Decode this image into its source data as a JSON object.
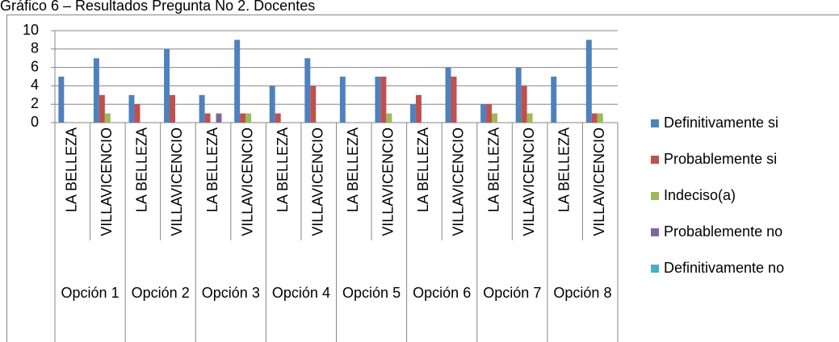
{
  "chart_data": {
    "type": "bar",
    "title": "Gráfico 6 – Resultados Pregunta No 2. Docentes",
    "categories": [
      "LA BELLEZA",
      "VILLAVICENCIO",
      "LA BELLEZA",
      "VILLAVICENCIO",
      "LA BELLEZA",
      "VILLAVICENCIO",
      "LA BELLEZA",
      "VILLAVICENCIO",
      "LA BELLEZA",
      "VILLAVICENCIO",
      "LA BELLEZA",
      "VILLAVICENCIO",
      "LA BELLEZA",
      "VILLAVICENCIO",
      "LA BELLEZA",
      "VILLAVICENCIO"
    ],
    "groups": [
      "Opción 1",
      "Opción 2",
      "Opción 3",
      "Opción 4",
      "Opción 5",
      "Opción 6",
      "Opción 7",
      "Opción 8"
    ],
    "series": [
      {
        "name": "Definitivamente si",
        "color": "#4f81bd",
        "values": [
          5,
          7,
          3,
          8,
          3,
          9,
          4,
          7,
          5,
          5,
          2,
          6,
          2,
          6,
          5,
          9
        ]
      },
      {
        "name": "Probablemente si",
        "color": "#c0504d",
        "values": [
          0,
          3,
          2,
          3,
          1,
          1,
          1,
          4,
          0,
          5,
          3,
          5,
          2,
          4,
          0,
          1
        ]
      },
      {
        "name": "Indeciso(a)",
        "color": "#9bbb59",
        "values": [
          0,
          1,
          0,
          0,
          0,
          1,
          0,
          0,
          0,
          1,
          0,
          0,
          1,
          1,
          0,
          1
        ]
      },
      {
        "name": "Probablemente no",
        "color": "#8064a2",
        "values": [
          0,
          0,
          0,
          0,
          1,
          0,
          0,
          0,
          0,
          0,
          0,
          0,
          0,
          0,
          0,
          0
        ]
      },
      {
        "name": "Definitivamente no",
        "color": "#4bacc6",
        "values": [
          0,
          0,
          0,
          0,
          0,
          0,
          0,
          0,
          0,
          0,
          0,
          0,
          0,
          0,
          0,
          0
        ]
      }
    ],
    "ylim": [
      0,
      10
    ],
    "yticks": [
      0,
      2,
      4,
      6,
      8,
      10
    ],
    "grid": true,
    "legend": "right"
  }
}
